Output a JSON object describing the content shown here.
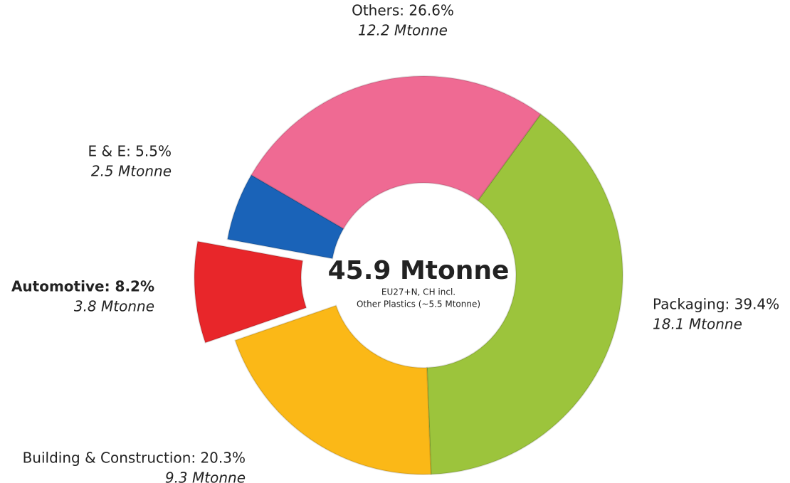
{
  "chart_data": {
    "type": "donut",
    "values": [
      39.4,
      20.3,
      8.2,
      5.5,
      26.6
    ],
    "value_labels": [
      "Packaging: 39.4%",
      "Building & Construction: 20.3%",
      "Automotive: 8.2%",
      "E & E: 5.5%",
      "Others: 26.6%"
    ],
    "secondary_values": [
      18.1,
      9.3,
      3.8,
      2.5,
      12.2
    ],
    "secondary_labels": [
      "18.1 Mtonne",
      "9.3 Mtonne",
      "3.8 Mtonne",
      "2.5 Mtonne",
      "12.2 Mtonne"
    ],
    "colors": [
      "#9cc43c",
      "#fbb817",
      "#e8262a",
      "#1a63b8",
      "#ef6a93"
    ],
    "exploded_index": 2,
    "center_title": "45.9 Mtonne",
    "center_subtitle": [
      "EU27+N, CH incl.",
      "Other Plastics (~5.5 Mtonne)"
    ]
  }
}
